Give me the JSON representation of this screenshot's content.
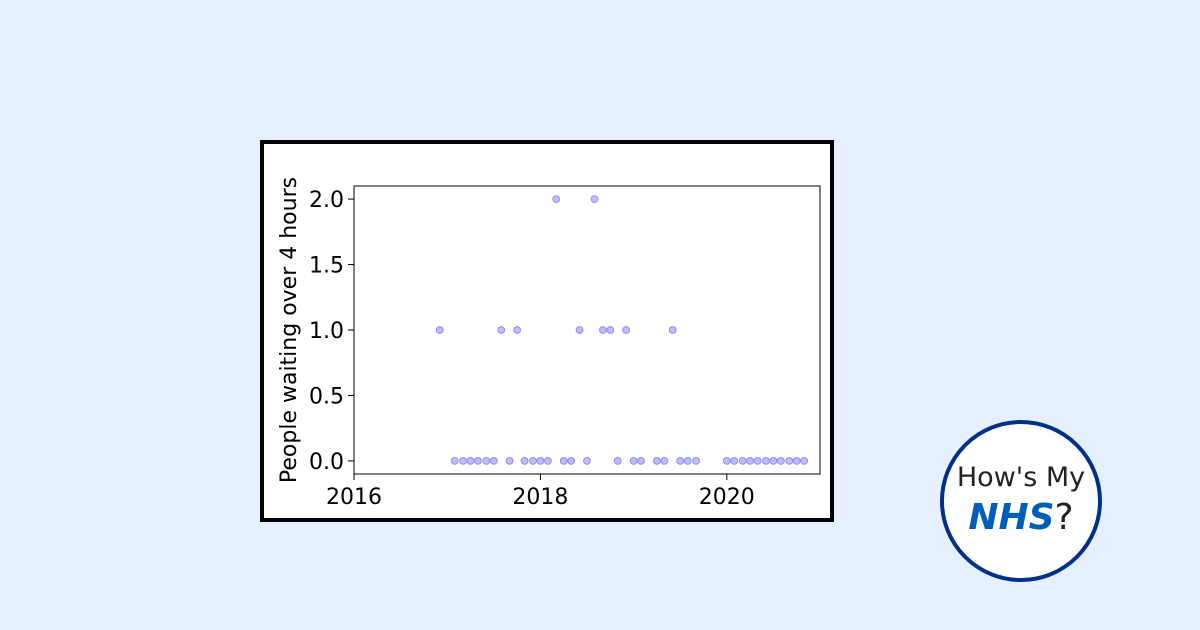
{
  "colors": {
    "background": "#e5effd",
    "marker": "#b3b3ff",
    "marker_edge": "#8c8cf2",
    "nhs_blue": "#005eb8",
    "logo_ring": "#003087"
  },
  "logo": {
    "line1": "How's My",
    "nhs": "NHS",
    "suffix": "?"
  },
  "chart_data": {
    "type": "scatter",
    "title": "",
    "xlabel": "",
    "ylabel": "People waiting over 4 hours",
    "xlim": [
      2016.0,
      2021.0
    ],
    "ylim": [
      -0.1,
      2.1
    ],
    "xticks": [
      2016,
      2018,
      2020
    ],
    "yticks": [
      0.0,
      0.5,
      1.0,
      1.5,
      2.0
    ],
    "grid": false,
    "series": [
      {
        "x": [
          2016.92,
          2017.08,
          2017.17,
          2017.25,
          2017.33,
          2017.42,
          2017.5,
          2017.58,
          2017.67,
          2017.75,
          2017.83,
          2017.92,
          2018.0,
          2018.08,
          2018.17,
          2018.25,
          2018.33,
          2018.42,
          2018.5,
          2018.58,
          2018.67,
          2018.75,
          2018.83,
          2018.92,
          2019.0,
          2019.08,
          2019.25,
          2019.33,
          2019.42,
          2019.5,
          2019.58,
          2019.67,
          2020.0,
          2020.08,
          2020.17,
          2020.25,
          2020.33,
          2020.42,
          2020.5,
          2020.58,
          2020.67,
          2020.75,
          2020.83
        ],
        "y": [
          1,
          0,
          0,
          0,
          0,
          0,
          0,
          1,
          0,
          1,
          0,
          0,
          0,
          0,
          2,
          0,
          0,
          1,
          0,
          2,
          1,
          1,
          0,
          1,
          0,
          0,
          0,
          0,
          1,
          0,
          0,
          0,
          0,
          0,
          0,
          0,
          0,
          0,
          0,
          0,
          0,
          0,
          0
        ]
      }
    ]
  }
}
